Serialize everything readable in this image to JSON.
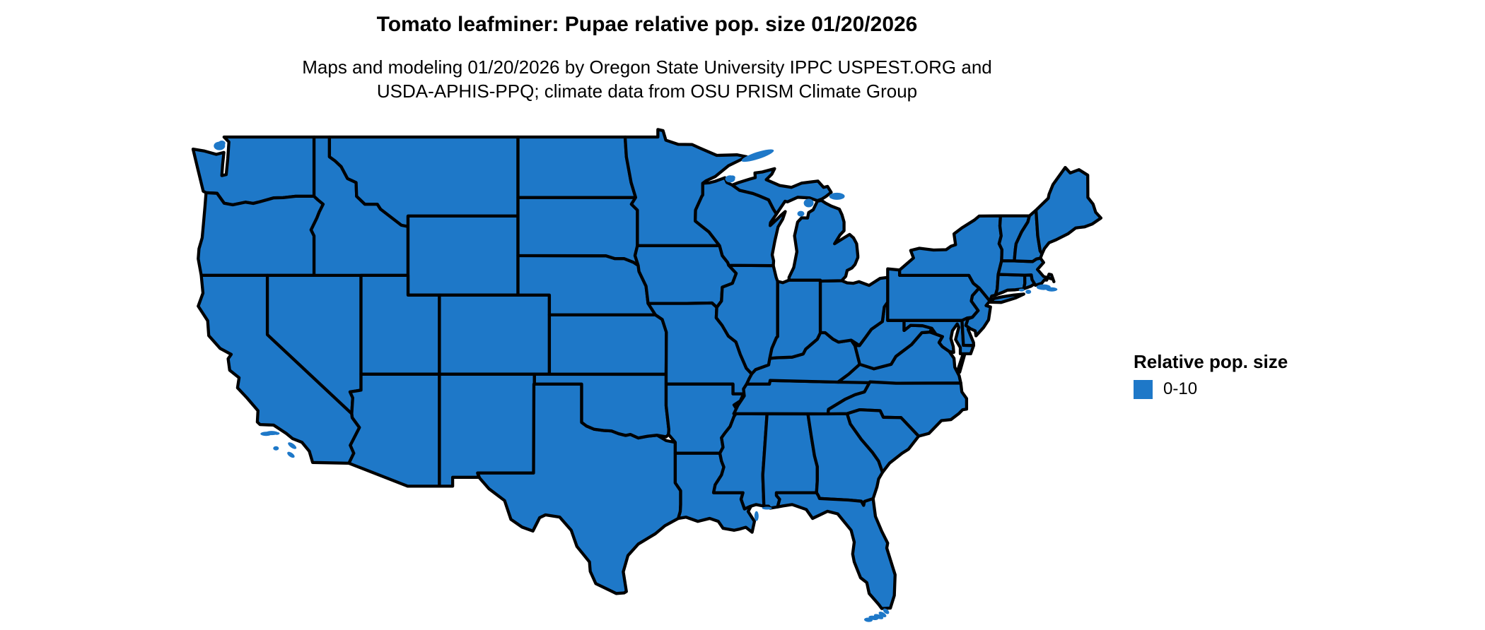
{
  "title": "Tomato leafminer: Pupae relative pop. size 01/20/2026",
  "subtitle_line1": "Maps and modeling 01/20/2026 by Oregon State University IPPC USPEST.ORG and",
  "subtitle_line2": "USDA-APHIS-PPQ; climate data from OSU PRISM Climate Group",
  "legend": {
    "title": "Relative pop. size",
    "items": [
      {
        "label": "0-10",
        "color": "#1e78c8"
      }
    ]
  },
  "map": {
    "region": "Contiguous United States",
    "fill_color": "#1e78c8",
    "border_color": "#000000",
    "background_color": "#ffffff"
  },
  "chart_data": {
    "type": "choropleth",
    "title": "Tomato leafminer: Pupae relative pop. size 01/20/2026",
    "legend_title": "Relative pop. size",
    "legend_position": "right",
    "region": "Contiguous United States",
    "classes": [
      {
        "label": "0-10",
        "color": "#1e78c8"
      }
    ],
    "values_note": "Every state on the map is shaded in the single class 0-10"
  }
}
